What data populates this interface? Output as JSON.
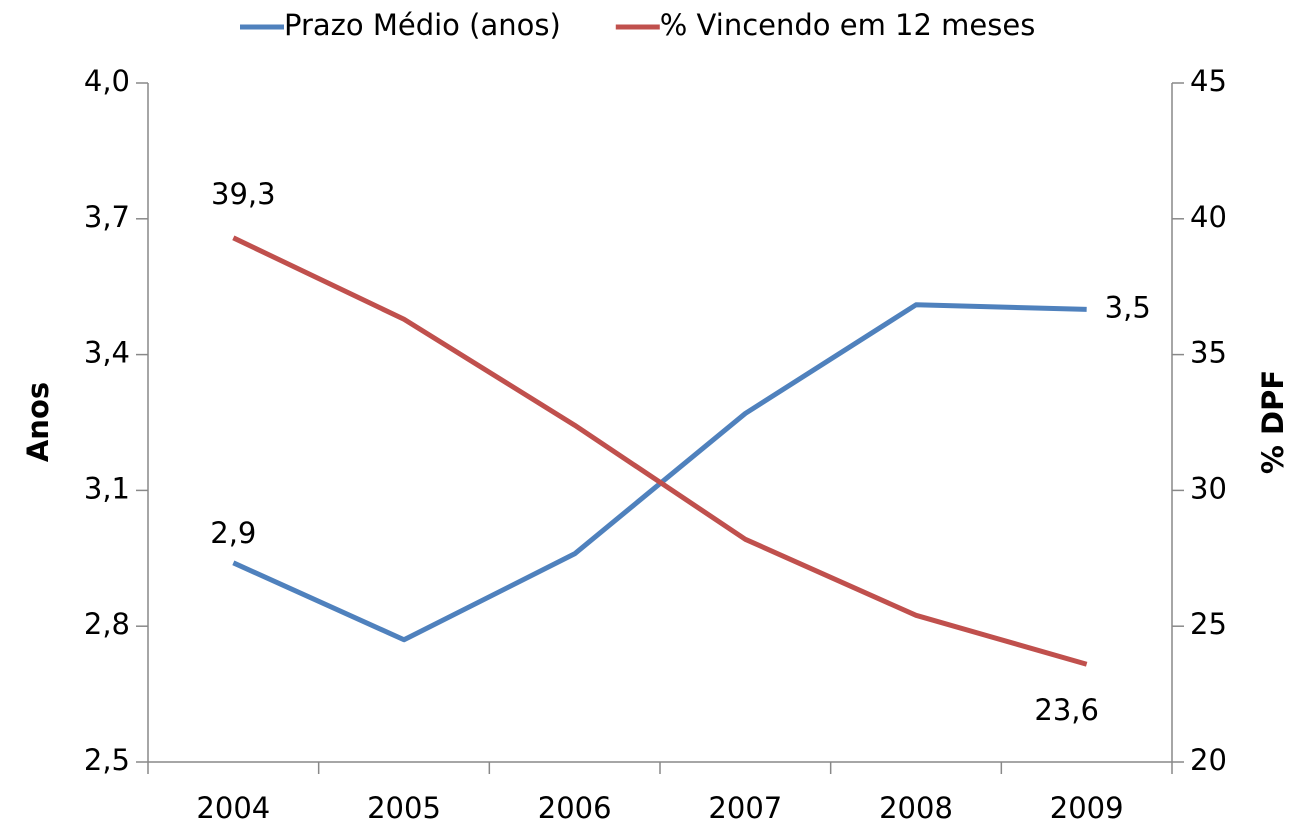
{
  "chart_data": {
    "type": "line",
    "categories": [
      "2004",
      "2005",
      "2006",
      "2007",
      "2008",
      "2009"
    ],
    "series": [
      {
        "name": "Prazo Médio (anos)",
        "color": "#4f81bd",
        "values": [
          2.94,
          2.77,
          2.96,
          3.27,
          3.51,
          3.5
        ],
        "value_labels": [
          "2,9",
          null,
          null,
          null,
          null,
          "3,5"
        ]
      },
      {
        "name": "% Vincendo em 12 meses",
        "color": "#c0504d",
        "axis": "y2",
        "values": [
          39.3,
          36.3,
          32.4,
          28.2,
          25.4,
          23.6
        ],
        "value_labels": [
          "39,3",
          null,
          null,
          null,
          null,
          "23,6"
        ]
      }
    ],
    "ylabel": "Anos",
    "y2label": "% DPF",
    "ylim": [
      2.5,
      4.0
    ],
    "yticks": [
      {
        "value": 2.5,
        "label": "2,5"
      },
      {
        "value": 2.8,
        "label": "2,8"
      },
      {
        "value": 3.1,
        "label": "3,1"
      },
      {
        "value": 3.4,
        "label": "3,4"
      },
      {
        "value": 3.7,
        "label": "3,7"
      },
      {
        "value": 4.0,
        "label": "4,0"
      }
    ],
    "y2lim": [
      20,
      45
    ],
    "y2ticks": [
      20,
      25,
      30,
      35,
      40,
      45
    ],
    "legend": "top",
    "grid": false
  }
}
